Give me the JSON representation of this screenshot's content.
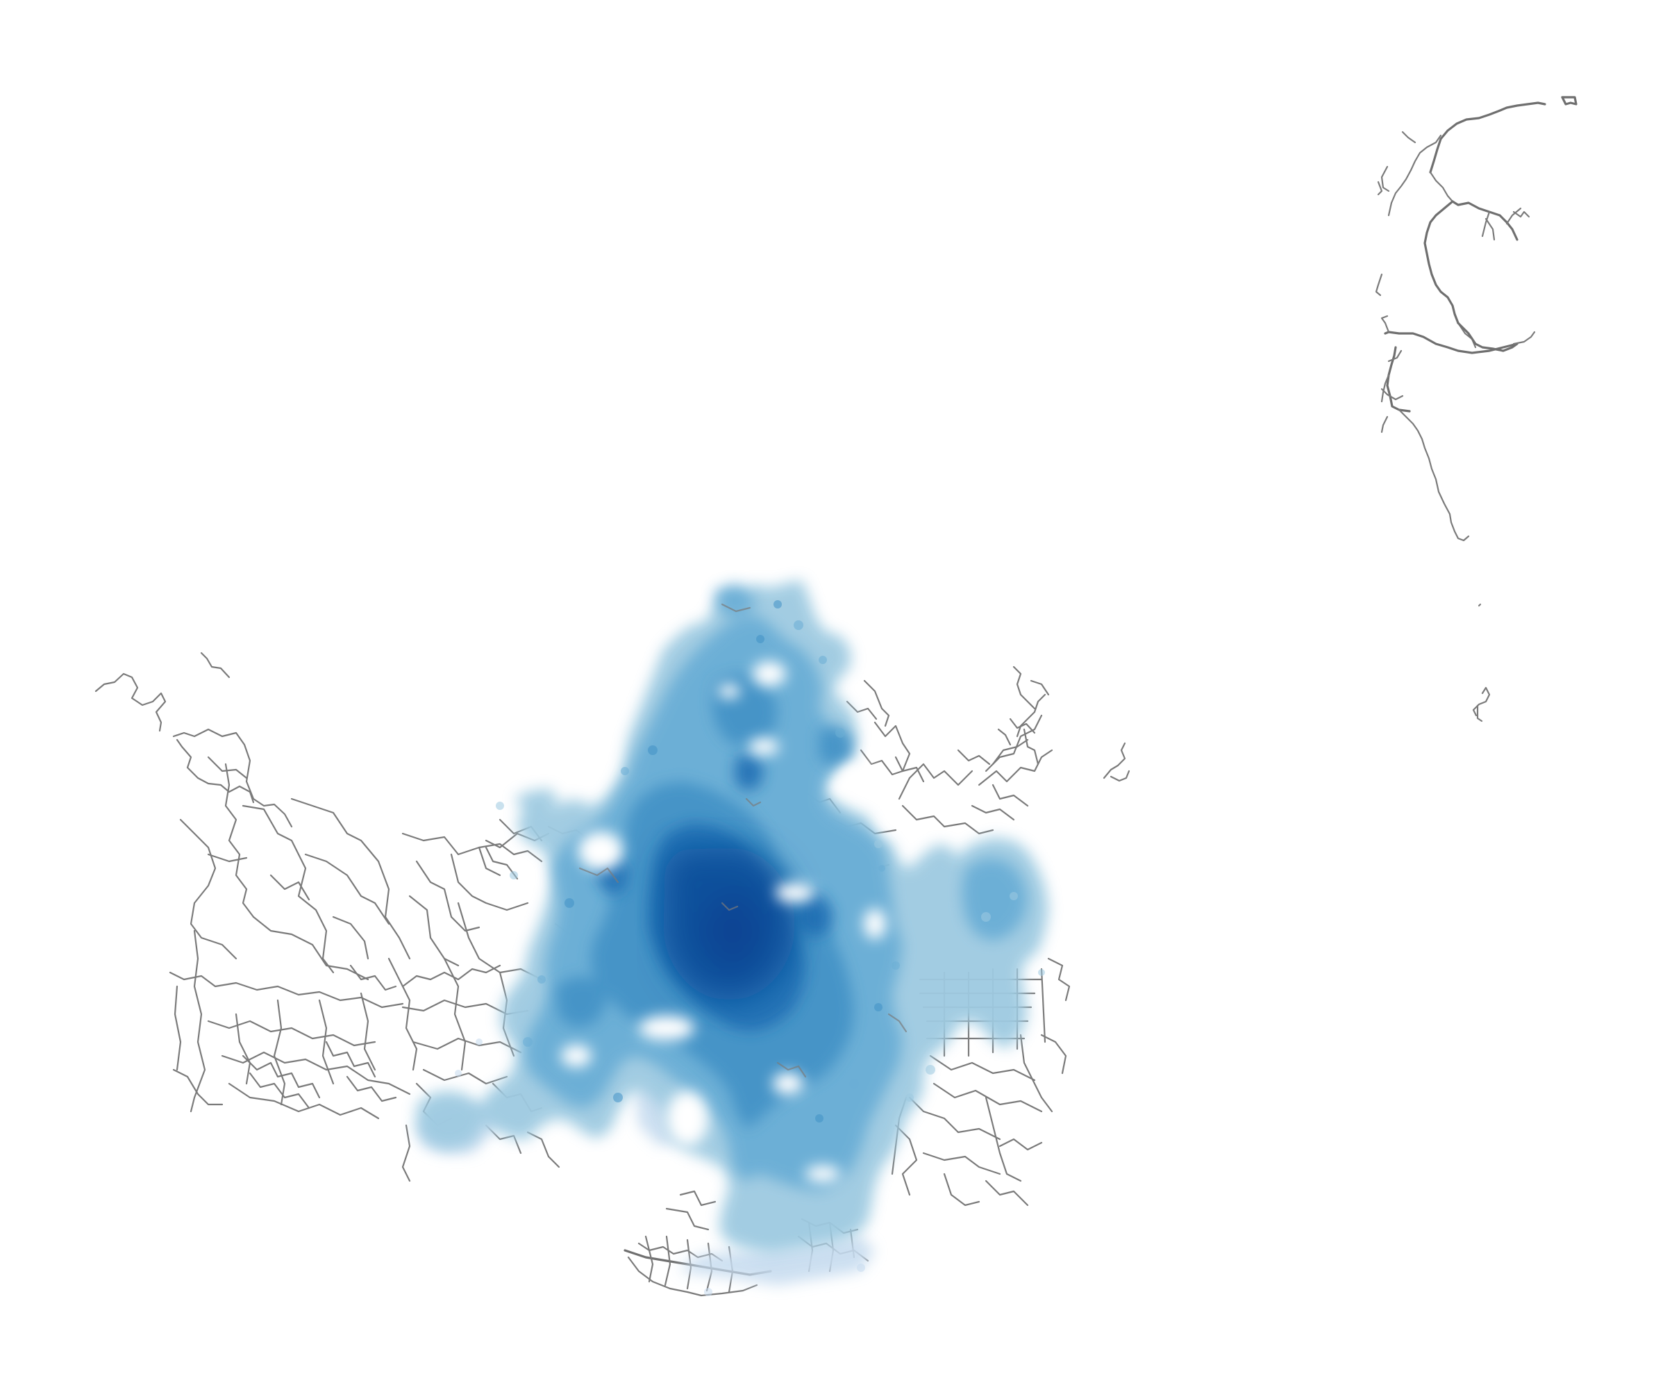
{
  "map": {
    "type": "road network with point density overlay",
    "background_color": "#ffffff",
    "road_color": "#7a7a7a",
    "density_palette": [
      "#eff6fd",
      "#c6dbef",
      "#9ecae1",
      "#6baed6",
      "#4292c6",
      "#2171b5",
      "#08519c"
    ],
    "legend": null,
    "title": null
  }
}
